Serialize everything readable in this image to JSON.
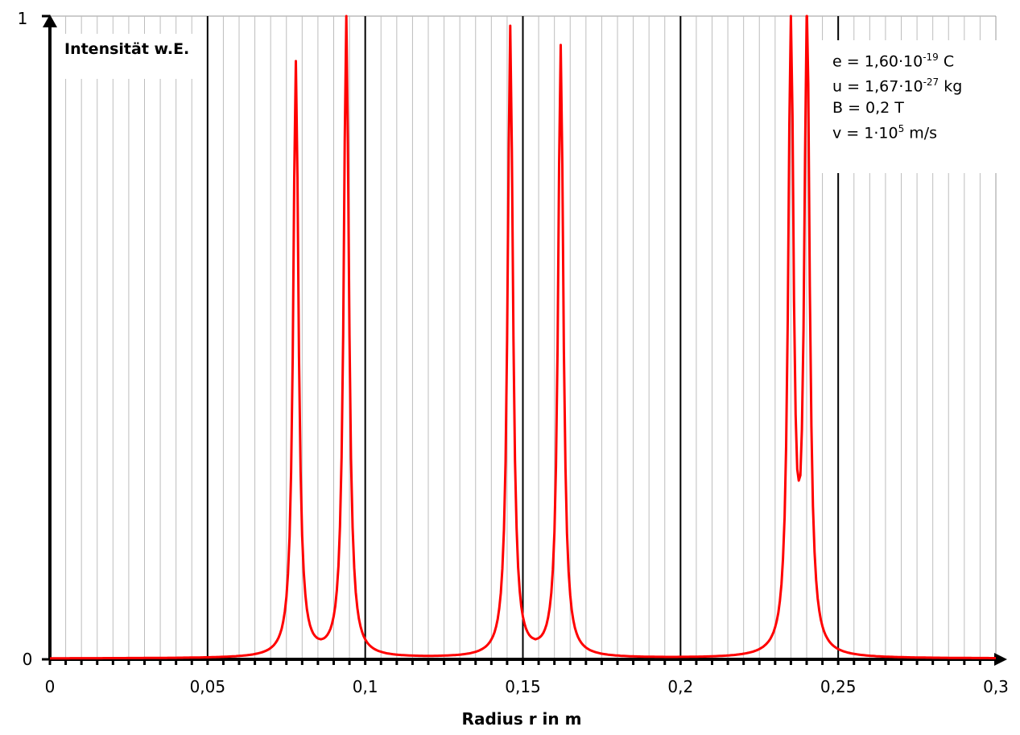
{
  "chart_data": {
    "type": "line",
    "title": "",
    "xlabel": "Radius r in m",
    "ylabel": "Intensität w.E.",
    "xlim": [
      0,
      0.3
    ],
    "ylim": [
      0,
      1
    ],
    "x_ticks": [
      0,
      0.05,
      0.1,
      0.15,
      0.2,
      0.25,
      0.3
    ],
    "x_tick_labels": [
      "0",
      "0,05",
      "0,1",
      "0,15",
      "0,2",
      "0,25",
      "0,3"
    ],
    "y_tick_labels": [
      "0",
      "1"
    ],
    "x_minor_step": 0.005,
    "grid": "vertical major and minor",
    "series": [
      {
        "name": "Intensität",
        "color": "#ff0000",
        "model": "sum of Lorentzian peaks",
        "peak_width": 0.001,
        "peaks": [
          {
            "x": 0.078,
            "y": 0.93
          },
          {
            "x": 0.094,
            "y": 1.0
          },
          {
            "x": 0.146,
            "y": 0.985
          },
          {
            "x": 0.162,
            "y": 0.955
          },
          {
            "x": 0.235,
            "y": 1.0
          },
          {
            "x": 0.2401,
            "y": 1.0
          }
        ],
        "notable_points": [
          {
            "x": 0.086,
            "y": 0.03
          },
          {
            "x": 0.154,
            "y": 0.03
          },
          {
            "x": 0.2375,
            "y": 0.277
          }
        ]
      }
    ],
    "legend": {
      "position": "top-right",
      "lines": [
        {
          "base": "e = 1,60·10",
          "sup": "-19",
          "unit": " C"
        },
        {
          "base": "u = 1,67·10",
          "sup": "-27",
          "unit": " kg"
        },
        {
          "base": "B = 0,2 T",
          "sup": "",
          "unit": ""
        },
        {
          "base": "v = 1·10",
          "sup": "5",
          "unit": " m/s"
        }
      ]
    }
  }
}
